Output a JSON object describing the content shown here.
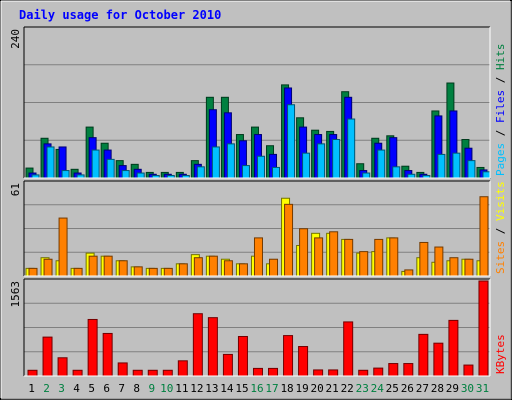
{
  "chart_data": [
    {
      "panel": "hits-files-pages",
      "type": "bar",
      "title": "Daily usage for October 2010",
      "ylabel_max": "240",
      "ylim": [
        0,
        240
      ],
      "categories": [
        "1",
        "2",
        "3",
        "4",
        "5",
        "6",
        "7",
        "8",
        "9",
        "10",
        "11",
        "12",
        "13",
        "14",
        "15",
        "16",
        "17",
        "18",
        "19",
        "20",
        "21",
        "22",
        "23",
        "24",
        "25",
        "26",
        "27",
        "28",
        "29",
        "30",
        "31"
      ],
      "weekend_days": [
        "2",
        "3",
        "9",
        "10",
        "16",
        "17",
        "23",
        "24",
        "30",
        "31"
      ],
      "legend": [
        {
          "text": "Pages",
          "color": "#00C0FF"
        },
        {
          "text": " / ",
          "color": "#000000"
        },
        {
          "text": "Files",
          "color": "#0000FF"
        },
        {
          "text": " / ",
          "color": "#000000"
        },
        {
          "text": "Hits",
          "color": "#008040"
        }
      ],
      "series": [
        {
          "name": "Hits",
          "color": "#008040",
          "values": [
            16,
            64,
            46,
            14,
            82,
            56,
            28,
            22,
            9,
            9,
            9,
            28,
            130,
            130,
            70,
            82,
            52,
            150,
            97,
            77,
            75,
            139,
            23,
            64,
            68,
            19,
            9,
            108,
            153,
            62,
            17
          ]
        },
        {
          "name": "Files",
          "color": "#0000FF",
          "values": [
            8,
            55,
            50,
            8,
            65,
            45,
            20,
            14,
            6,
            6,
            6,
            22,
            110,
            105,
            60,
            70,
            38,
            145,
            82,
            70,
            70,
            130,
            12,
            56,
            65,
            12,
            6,
            100,
            108,
            48,
            13
          ]
        },
        {
          "name": "Pages",
          "color": "#00C0FF",
          "values": [
            5,
            50,
            12,
            5,
            45,
            30,
            12,
            8,
            4,
            4,
            4,
            18,
            50,
            55,
            20,
            35,
            17,
            118,
            40,
            55,
            62,
            95,
            8,
            45,
            18,
            6,
            4,
            38,
            40,
            28,
            10
          ]
        }
      ]
    },
    {
      "panel": "visits-sites",
      "type": "bar",
      "ylabel_max": "61",
      "ylim": [
        0,
        61
      ],
      "legend": [
        {
          "text": "Sites",
          "color": "#FF8000"
        },
        {
          "text": " / ",
          "color": "#000000"
        },
        {
          "text": "Visits",
          "color": "#FFFF00"
        }
      ],
      "series": [
        {
          "name": "Visits",
          "color": "#FFFF00",
          "values": [
            5,
            12,
            10,
            5,
            15,
            13,
            10,
            6,
            5,
            5,
            8,
            14,
            13,
            11,
            8,
            13,
            8,
            51,
            20,
            28,
            28,
            24,
            15,
            16,
            25,
            3,
            12,
            9,
            10,
            11,
            10
          ]
        },
        {
          "name": "Sites",
          "color": "#FF8000",
          "values": [
            5,
            11,
            38,
            5,
            13,
            13,
            10,
            6,
            5,
            5,
            8,
            12,
            13,
            10,
            8,
            25,
            11,
            47,
            31,
            25,
            29,
            24,
            16,
            24,
            25,
            4,
            22,
            19,
            12,
            11,
            52
          ]
        }
      ]
    },
    {
      "panel": "kbytes",
      "type": "bar",
      "ylabel_max": "1563",
      "ylim": [
        0,
        1563
      ],
      "legend": [
        {
          "text": "KBytes",
          "color": "#FF0000"
        }
      ],
      "series": [
        {
          "name": "KBytes",
          "color": "#FF0000",
          "values": [
            94,
            640,
            300,
            94,
            930,
            700,
            215,
            94,
            94,
            94,
            250,
            1025,
            960,
            355,
            650,
            125,
            125,
            665,
            485,
            100,
            100,
            890,
            94,
            130,
            205,
            205,
            685,
            540,
            915,
            180,
            1563
          ]
        }
      ]
    }
  ]
}
